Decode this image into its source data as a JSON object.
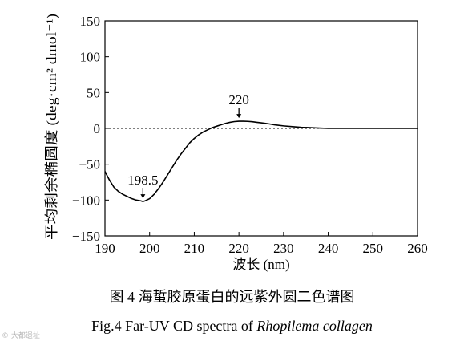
{
  "chart_data": {
    "type": "line",
    "title": "",
    "xlabel": "波长 (nm)",
    "ylabel": "平均剩余椭圆度 (deg·cm² dmol⁻¹)",
    "xlim": [
      190,
      260
    ],
    "ylim": [
      -150,
      150
    ],
    "xticks": [
      "190",
      "200",
      "210",
      "220",
      "230",
      "240",
      "250",
      "260"
    ],
    "yticks": [
      "-150",
      "-100",
      "-50",
      "0",
      "50",
      "100",
      "150"
    ],
    "grid": false,
    "legend": "none",
    "zero_line": "dotted",
    "series": [
      {
        "x": [
          190,
          191,
          192,
          193,
          194,
          195,
          196,
          197,
          198,
          198.5,
          199,
          200,
          201,
          202,
          203,
          204,
          205,
          206,
          207,
          208,
          209,
          210,
          211,
          212,
          213,
          214,
          215,
          216,
          217,
          218,
          219,
          220,
          221,
          222,
          223,
          224,
          225,
          226,
          227,
          228,
          230,
          232,
          234,
          236,
          238,
          240,
          245,
          250,
          255,
          260
        ],
        "y": [
          -60,
          -72,
          -82,
          -88,
          -92,
          -95,
          -98,
          -100,
          -101,
          -102,
          -101,
          -98,
          -92,
          -84,
          -75,
          -65,
          -55,
          -45,
          -36,
          -28,
          -20,
          -14,
          -9,
          -5,
          -2,
          1,
          3,
          5,
          7,
          8.5,
          9.5,
          10,
          10,
          9.8,
          9.3,
          8.5,
          7.8,
          7,
          6,
          5,
          3.5,
          2.5,
          1.5,
          1,
          0.5,
          0,
          0,
          0,
          0,
          0
        ]
      }
    ],
    "annotations": [
      {
        "label": "198.5",
        "x": 198.5,
        "y": -102
      },
      {
        "label": "220",
        "x": 220,
        "y": 10
      }
    ]
  },
  "captions": {
    "cn": "图 4    海蜇胶原蛋白的远紫外圆二色谱图",
    "en_main": "Fig.4    Far-UV CD spectra of ",
    "en_italic": "Rhopilema collagen"
  },
  "watermark": "© 大都遗址"
}
